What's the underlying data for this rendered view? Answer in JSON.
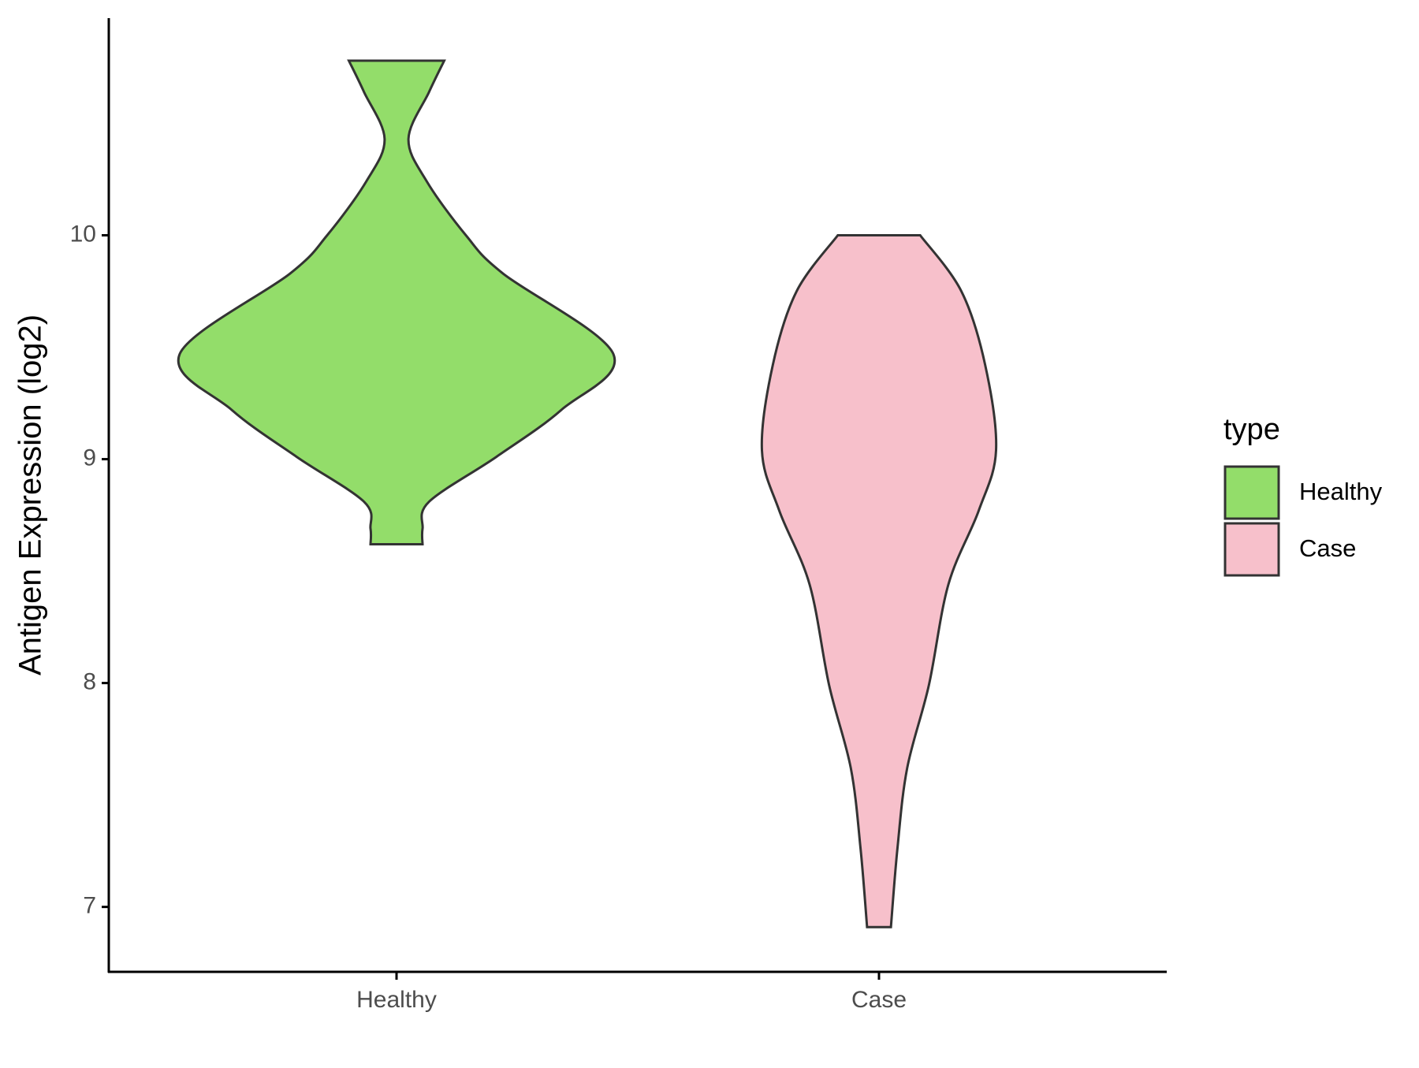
{
  "chart_data": {
    "type": "violin",
    "y_label": "Antigen Expression (log2)",
    "categories": [
      "Healthy",
      "Case"
    ],
    "legend_title": "type",
    "legend_position": "right",
    "ylim": [
      6.71,
      10.97
    ],
    "yticks": [
      7,
      8,
      9,
      10
    ],
    "series": [
      {
        "name": "Healthy",
        "color": "#93dd6a",
        "y": [
          10.78,
          10.64,
          10.43,
          10.24,
          10.0,
          9.83,
          9.47,
          9.22,
          9.01,
          8.81,
          8.69,
          8.62
        ],
        "widths": [
          0.22,
          0.15,
          0.055,
          0.14,
          0.32,
          0.49,
          1.0,
          0.76,
          0.46,
          0.15,
          0.12,
          0.12
        ]
      },
      {
        "name": "Case",
        "color": "#f7c0cb",
        "y": [
          10.0,
          9.75,
          9.42,
          9.04,
          8.77,
          8.44,
          7.99,
          7.62,
          7.26,
          6.91
        ],
        "widths": [
          0.19,
          0.38,
          0.49,
          0.54,
          0.46,
          0.32,
          0.23,
          0.13,
          0.085,
          0.055
        ]
      }
    ]
  }
}
